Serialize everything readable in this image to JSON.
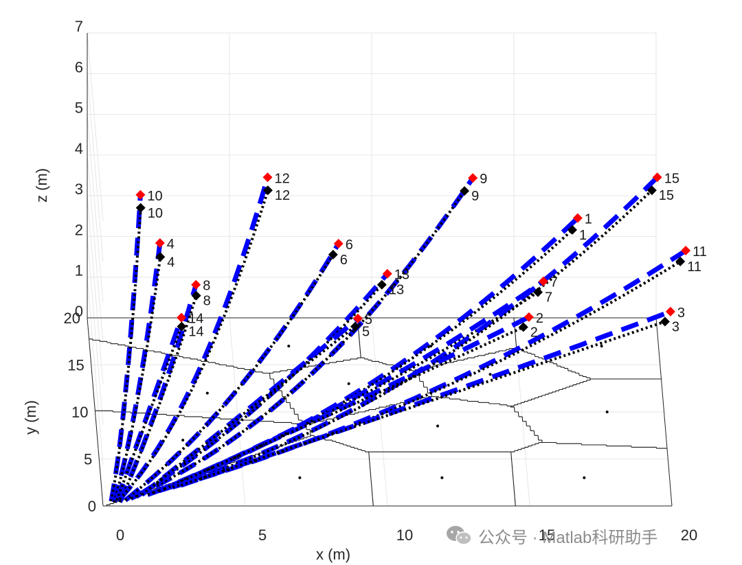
{
  "chart_data": {
    "type": "3d-line",
    "title": "",
    "xlabel": "x (m)",
    "ylabel": "y (m)",
    "zlabel": "z (m)",
    "xlim": [
      0,
      20
    ],
    "ylim": [
      0,
      20
    ],
    "zlim": [
      0,
      7
    ],
    "x_ticks": [
      "0",
      "5",
      "10",
      "15",
      "20"
    ],
    "y_ticks": [
      "0",
      "5",
      "10",
      "15",
      "20"
    ],
    "z_ticks": [
      "0",
      "1",
      "2",
      "3",
      "4",
      "5",
      "6",
      "7"
    ],
    "grid": true,
    "colors": {
      "planned_path": "#0000ff",
      "actual_path": "#000000",
      "target_marker": "#ff0000",
      "final_marker": "#000000",
      "voronoi": "#1a1a1a"
    },
    "voronoi_seeds": [
      {
        "x": 7.0,
        "y": 17.0
      },
      {
        "x": 12.0,
        "y": 17.0
      },
      {
        "x": 18.0,
        "y": 17.0
      },
      {
        "x": 4.0,
        "y": 12.0
      },
      {
        "x": 9.0,
        "y": 13.0
      },
      {
        "x": 14.0,
        "y": 14.0
      },
      {
        "x": 3.0,
        "y": 7.0
      },
      {
        "x": 12.0,
        "y": 8.5
      },
      {
        "x": 18.0,
        "y": 10.0
      },
      {
        "x": 7.0,
        "y": 3.0
      },
      {
        "x": 12.0,
        "y": 3.0
      },
      {
        "x": 17.0,
        "y": 3.0
      }
    ],
    "uavs": [
      {
        "label": "10",
        "start": [
          0.3,
          0.5,
          0
        ],
        "target": [
          1.8,
          17.5,
          3.6
        ],
        "final": [
          1.8,
          17.2,
          3.35
        ]
      },
      {
        "label": "4",
        "start": [
          0.4,
          0.4,
          0
        ],
        "target": [
          2.5,
          18.0,
          2.3
        ],
        "final": [
          2.5,
          17.6,
          2.05
        ]
      },
      {
        "label": "8",
        "start": [
          0.6,
          0.4,
          0
        ],
        "target": [
          3.8,
          19.2,
          1.0
        ],
        "final": [
          3.8,
          18.9,
          0.8
        ]
      },
      {
        "label": "14",
        "start": [
          0.5,
          0.6,
          0
        ],
        "target": [
          3.3,
          19.6,
          0.1
        ],
        "final": [
          3.3,
          19.3,
          -0.05
        ]
      },
      {
        "label": "12",
        "start": [
          0.6,
          0.7,
          0
        ],
        "target": [
          6.3,
          18.5,
          3.8
        ],
        "final": [
          6.3,
          18.2,
          3.55
        ]
      },
      {
        "label": "6",
        "start": [
          0.8,
          0.6,
          0
        ],
        "target": [
          8.8,
          18.8,
          2.1
        ],
        "final": [
          8.6,
          18.5,
          1.9
        ]
      },
      {
        "label": "9",
        "start": [
          1.0,
          0.8,
          0
        ],
        "target": [
          13.5,
          18.0,
          3.9
        ],
        "final": [
          13.2,
          17.7,
          3.65
        ]
      },
      {
        "label": "13",
        "start": [
          1.2,
          1.0,
          0
        ],
        "target": [
          10.5,
          18.2,
          1.5
        ],
        "final": [
          10.3,
          17.9,
          1.3
        ]
      },
      {
        "label": "5",
        "start": [
          1.4,
          1.2,
          0
        ],
        "target": [
          9.5,
          19.5,
          0.1
        ],
        "final": [
          9.4,
          19.3,
          -0.05
        ]
      },
      {
        "label": "1",
        "start": [
          1.6,
          1.2,
          0
        ],
        "target": [
          17.2,
          18.5,
          2.8
        ],
        "final": [
          17.0,
          18.1,
          2.6
        ]
      },
      {
        "label": "7",
        "start": [
          1.8,
          1.4,
          0
        ],
        "target": [
          16.0,
          18.7,
          1.2
        ],
        "final": [
          15.8,
          18.4,
          1.0
        ]
      },
      {
        "label": "15",
        "start": [
          2.0,
          1.6,
          0
        ],
        "target": [
          20.0,
          18.5,
          3.8
        ],
        "final": [
          19.8,
          18.2,
          3.55
        ]
      },
      {
        "label": "2",
        "start": [
          2.2,
          1.8,
          0
        ],
        "target": [
          15.5,
          19.0,
          0.25
        ],
        "final": [
          15.3,
          18.8,
          0.05
        ]
      },
      {
        "label": "11",
        "start": [
          2.5,
          2.0,
          0
        ],
        "target": [
          21.0,
          18.5,
          2.0
        ],
        "final": [
          20.8,
          18.2,
          1.8
        ]
      },
      {
        "label": "3",
        "start": [
          2.8,
          2.2,
          0
        ],
        "target": [
          20.5,
          19.8,
          0.2
        ],
        "final": [
          20.3,
          19.6,
          0.0
        ]
      }
    ]
  },
  "watermark": {
    "text": "公众号 · Matlab科研助手",
    "icon": "wechat-icon"
  }
}
